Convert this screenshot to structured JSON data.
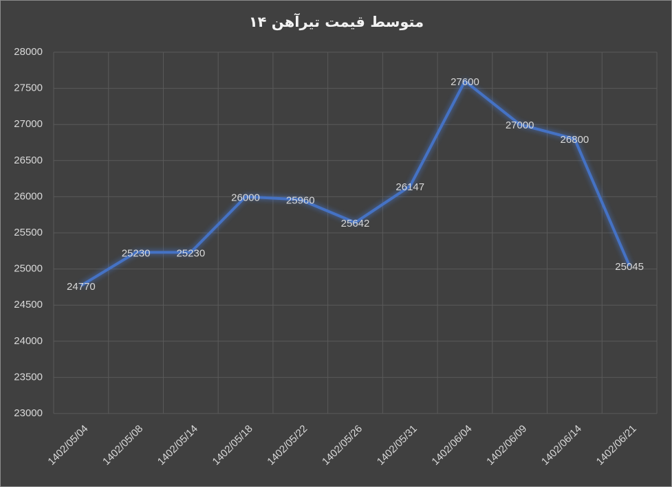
{
  "chart_data": {
    "type": "line",
    "title": "متوسط قیمت تیرآهن ۱۴",
    "categories": [
      "1402/05/04",
      "1402/05/08",
      "1402/05/14",
      "1402/05/18",
      "1402/05/22",
      "1402/05/26",
      "1402/05/31",
      "1402/06/04",
      "1402/06/09",
      "1402/06/14",
      "1402/06/21"
    ],
    "values": [
      24770,
      25230,
      25230,
      26000,
      25960,
      25642,
      26147,
      27600,
      27000,
      26800,
      25045
    ],
    "color": "#4472c4",
    "ylim": [
      23000,
      28000
    ],
    "yticks": [
      23000,
      23500,
      24000,
      24500,
      25000,
      25500,
      26000,
      26500,
      27000,
      27500,
      28000
    ],
    "grid": true
  }
}
